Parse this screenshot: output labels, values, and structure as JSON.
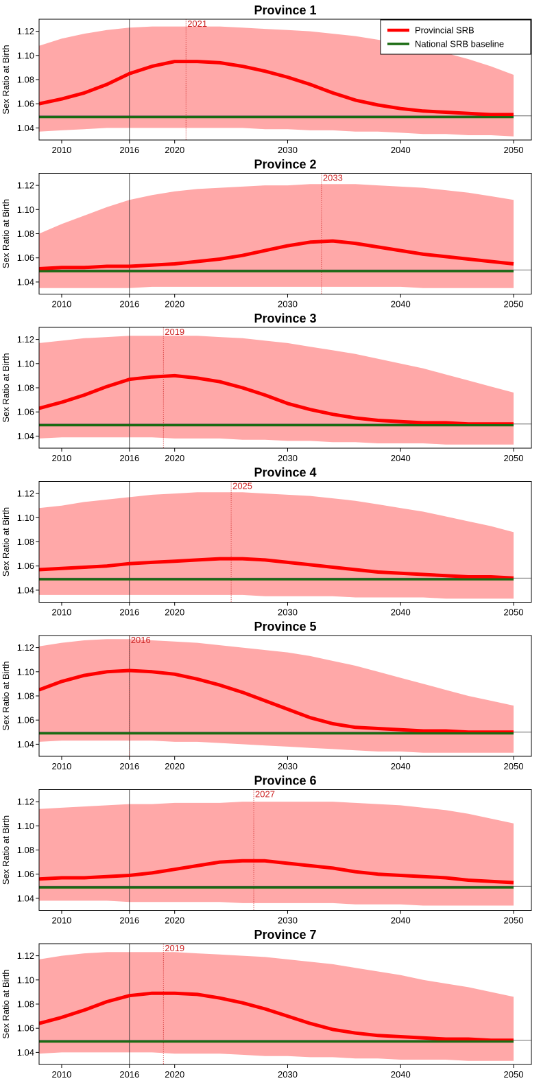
{
  "colors": {
    "band": "#ffa8a8",
    "provincial": "#ff0000",
    "national": "#1a6b12",
    "peak": "#cc2222",
    "axis": "#000000"
  },
  "legend": {
    "placement": "top-right",
    "items": [
      {
        "label": "Provincial SRB",
        "color": "#ff0000"
      },
      {
        "label": "National SRB baseline",
        "color": "#1a6b12"
      }
    ]
  },
  "chart_data": [
    {
      "type": "area",
      "title": "Province 1",
      "ylabel": "Sex Ratio at Birth",
      "xlabel": "",
      "xlim": [
        2008,
        2050
      ],
      "ylim": [
        1.03,
        1.13
      ],
      "x_ticks": [
        2010,
        2016,
        2020,
        2030,
        2040,
        2050
      ],
      "y_ticks": [
        "1.04",
        "1.06",
        "1.08",
        "1.10",
        "1.12"
      ],
      "reference_year": 2016,
      "baseline": 1.05,
      "peak_year": 2021,
      "peak_label": "2021",
      "x": [
        2008,
        2010,
        2012,
        2014,
        2016,
        2018,
        2020,
        2022,
        2024,
        2026,
        2028,
        2030,
        2032,
        2034,
        2036,
        2038,
        2040,
        2042,
        2044,
        2046,
        2048,
        2050
      ],
      "series": [
        {
          "name": "Provincial SRB",
          "values": [
            1.06,
            1.064,
            1.069,
            1.076,
            1.085,
            1.091,
            1.095,
            1.095,
            1.094,
            1.091,
            1.087,
            1.082,
            1.076,
            1.069,
            1.063,
            1.059,
            1.056,
            1.054,
            1.053,
            1.052,
            1.051,
            1.051
          ]
        },
        {
          "name": "National SRB baseline",
          "values": [
            1.049,
            1.049,
            1.049,
            1.049,
            1.049,
            1.049,
            1.049,
            1.049,
            1.049,
            1.049,
            1.049,
            1.049,
            1.049,
            1.049,
            1.049,
            1.049,
            1.049,
            1.049,
            1.049,
            1.049,
            1.049,
            1.049
          ]
        }
      ],
      "band": {
        "upper": [
          1.108,
          1.114,
          1.118,
          1.121,
          1.123,
          1.124,
          1.124,
          1.124,
          1.124,
          1.123,
          1.122,
          1.121,
          1.12,
          1.118,
          1.116,
          1.113,
          1.11,
          1.106,
          1.102,
          1.097,
          1.091,
          1.084
        ],
        "lower": [
          1.037,
          1.038,
          1.039,
          1.04,
          1.04,
          1.04,
          1.04,
          1.04,
          1.04,
          1.04,
          1.039,
          1.039,
          1.038,
          1.038,
          1.037,
          1.037,
          1.036,
          1.035,
          1.035,
          1.034,
          1.034,
          1.033
        ]
      }
    },
    {
      "type": "area",
      "title": "Province 2",
      "ylabel": "Sex Ratio at Birth",
      "xlabel": "",
      "xlim": [
        2008,
        2050
      ],
      "ylim": [
        1.03,
        1.13
      ],
      "x_ticks": [
        2010,
        2016,
        2020,
        2030,
        2040,
        2050
      ],
      "y_ticks": [
        "1.04",
        "1.06",
        "1.08",
        "1.10",
        "1.12"
      ],
      "reference_year": 2016,
      "baseline": 1.05,
      "peak_year": 2033,
      "peak_label": "2033",
      "x": [
        2008,
        2010,
        2012,
        2014,
        2016,
        2018,
        2020,
        2022,
        2024,
        2026,
        2028,
        2030,
        2032,
        2034,
        2036,
        2038,
        2040,
        2042,
        2044,
        2046,
        2048,
        2050
      ],
      "series": [
        {
          "name": "Provincial SRB",
          "values": [
            1.051,
            1.052,
            1.052,
            1.053,
            1.053,
            1.054,
            1.055,
            1.057,
            1.059,
            1.062,
            1.066,
            1.07,
            1.073,
            1.074,
            1.072,
            1.069,
            1.066,
            1.063,
            1.061,
            1.059,
            1.057,
            1.055
          ]
        },
        {
          "name": "National SRB baseline",
          "values": [
            1.049,
            1.049,
            1.049,
            1.049,
            1.049,
            1.049,
            1.049,
            1.049,
            1.049,
            1.049,
            1.049,
            1.049,
            1.049,
            1.049,
            1.049,
            1.049,
            1.049,
            1.049,
            1.049,
            1.049,
            1.049,
            1.049
          ]
        }
      ],
      "band": {
        "upper": [
          1.08,
          1.088,
          1.095,
          1.102,
          1.108,
          1.112,
          1.115,
          1.117,
          1.118,
          1.119,
          1.12,
          1.12,
          1.121,
          1.121,
          1.121,
          1.12,
          1.119,
          1.118,
          1.116,
          1.114,
          1.111,
          1.108
        ],
        "lower": [
          1.035,
          1.035,
          1.035,
          1.035,
          1.035,
          1.036,
          1.036,
          1.036,
          1.036,
          1.036,
          1.036,
          1.036,
          1.036,
          1.036,
          1.036,
          1.036,
          1.036,
          1.035,
          1.035,
          1.035,
          1.035,
          1.035
        ]
      }
    },
    {
      "type": "area",
      "title": "Province 3",
      "ylabel": "Sex Ratio at Birth",
      "xlabel": "",
      "xlim": [
        2008,
        2050
      ],
      "ylim": [
        1.03,
        1.13
      ],
      "x_ticks": [
        2010,
        2016,
        2020,
        2030,
        2040,
        2050
      ],
      "y_ticks": [
        "1.04",
        "1.06",
        "1.08",
        "1.10",
        "1.12"
      ],
      "reference_year": 2016,
      "baseline": 1.05,
      "peak_year": 2019,
      "peak_label": "2019",
      "x": [
        2008,
        2010,
        2012,
        2014,
        2016,
        2018,
        2020,
        2022,
        2024,
        2026,
        2028,
        2030,
        2032,
        2034,
        2036,
        2038,
        2040,
        2042,
        2044,
        2046,
        2048,
        2050
      ],
      "series": [
        {
          "name": "Provincial SRB",
          "values": [
            1.063,
            1.068,
            1.074,
            1.081,
            1.087,
            1.089,
            1.09,
            1.088,
            1.085,
            1.08,
            1.074,
            1.067,
            1.062,
            1.058,
            1.055,
            1.053,
            1.052,
            1.051,
            1.051,
            1.05,
            1.05,
            1.05
          ]
        },
        {
          "name": "National SRB baseline",
          "values": [
            1.049,
            1.049,
            1.049,
            1.049,
            1.049,
            1.049,
            1.049,
            1.049,
            1.049,
            1.049,
            1.049,
            1.049,
            1.049,
            1.049,
            1.049,
            1.049,
            1.049,
            1.049,
            1.049,
            1.049,
            1.049,
            1.049
          ]
        }
      ],
      "band": {
        "upper": [
          1.117,
          1.119,
          1.121,
          1.122,
          1.123,
          1.123,
          1.123,
          1.123,
          1.122,
          1.121,
          1.119,
          1.117,
          1.114,
          1.111,
          1.108,
          1.104,
          1.1,
          1.096,
          1.091,
          1.086,
          1.081,
          1.076
        ],
        "lower": [
          1.038,
          1.039,
          1.039,
          1.039,
          1.039,
          1.039,
          1.038,
          1.038,
          1.038,
          1.037,
          1.037,
          1.036,
          1.036,
          1.035,
          1.035,
          1.034,
          1.034,
          1.034,
          1.033,
          1.033,
          1.033,
          1.033
        ]
      }
    },
    {
      "type": "area",
      "title": "Province 4",
      "ylabel": "Sex Ratio at Birth",
      "xlabel": "",
      "xlim": [
        2008,
        2050
      ],
      "ylim": [
        1.03,
        1.13
      ],
      "x_ticks": [
        2010,
        2016,
        2020,
        2030,
        2040,
        2050
      ],
      "y_ticks": [
        "1.04",
        "1.06",
        "1.08",
        "1.10",
        "1.12"
      ],
      "reference_year": 2016,
      "baseline": 1.05,
      "peak_year": 2025,
      "peak_label": "2025",
      "x": [
        2008,
        2010,
        2012,
        2014,
        2016,
        2018,
        2020,
        2022,
        2024,
        2026,
        2028,
        2030,
        2032,
        2034,
        2036,
        2038,
        2040,
        2042,
        2044,
        2046,
        2048,
        2050
      ],
      "series": [
        {
          "name": "Provincial SRB",
          "values": [
            1.057,
            1.058,
            1.059,
            1.06,
            1.062,
            1.063,
            1.064,
            1.065,
            1.066,
            1.066,
            1.065,
            1.063,
            1.061,
            1.059,
            1.057,
            1.055,
            1.054,
            1.053,
            1.052,
            1.051,
            1.051,
            1.05
          ]
        },
        {
          "name": "National SRB baseline",
          "values": [
            1.049,
            1.049,
            1.049,
            1.049,
            1.049,
            1.049,
            1.049,
            1.049,
            1.049,
            1.049,
            1.049,
            1.049,
            1.049,
            1.049,
            1.049,
            1.049,
            1.049,
            1.049,
            1.049,
            1.049,
            1.049,
            1.049
          ]
        }
      ],
      "band": {
        "upper": [
          1.108,
          1.11,
          1.113,
          1.115,
          1.117,
          1.119,
          1.12,
          1.121,
          1.121,
          1.121,
          1.12,
          1.119,
          1.118,
          1.116,
          1.114,
          1.111,
          1.108,
          1.105,
          1.101,
          1.097,
          1.093,
          1.088
        ],
        "lower": [
          1.036,
          1.036,
          1.036,
          1.036,
          1.036,
          1.036,
          1.036,
          1.036,
          1.036,
          1.036,
          1.035,
          1.035,
          1.035,
          1.035,
          1.034,
          1.034,
          1.034,
          1.034,
          1.033,
          1.033,
          1.033,
          1.033
        ]
      }
    },
    {
      "type": "area",
      "title": "Province 5",
      "ylabel": "Sex Ratio at Birth",
      "xlabel": "",
      "xlim": [
        2008,
        2050
      ],
      "ylim": [
        1.03,
        1.13
      ],
      "x_ticks": [
        2010,
        2016,
        2020,
        2030,
        2040,
        2050
      ],
      "y_ticks": [
        "1.04",
        "1.06",
        "1.08",
        "1.10",
        "1.12"
      ],
      "reference_year": 2016,
      "baseline": 1.05,
      "peak_year": 2016,
      "peak_label": "2016",
      "x": [
        2008,
        2010,
        2012,
        2014,
        2016,
        2018,
        2020,
        2022,
        2024,
        2026,
        2028,
        2030,
        2032,
        2034,
        2036,
        2038,
        2040,
        2042,
        2044,
        2046,
        2048,
        2050
      ],
      "series": [
        {
          "name": "Provincial SRB",
          "values": [
            1.085,
            1.092,
            1.097,
            1.1,
            1.101,
            1.1,
            1.098,
            1.094,
            1.089,
            1.083,
            1.076,
            1.069,
            1.062,
            1.057,
            1.054,
            1.053,
            1.052,
            1.051,
            1.051,
            1.05,
            1.05,
            1.05
          ]
        },
        {
          "name": "National SRB baseline",
          "values": [
            1.049,
            1.049,
            1.049,
            1.049,
            1.049,
            1.049,
            1.049,
            1.049,
            1.049,
            1.049,
            1.049,
            1.049,
            1.049,
            1.049,
            1.049,
            1.049,
            1.049,
            1.049,
            1.049,
            1.049,
            1.049,
            1.049
          ]
        }
      ],
      "band": {
        "upper": [
          1.121,
          1.124,
          1.126,
          1.127,
          1.127,
          1.126,
          1.125,
          1.124,
          1.122,
          1.12,
          1.118,
          1.116,
          1.113,
          1.109,
          1.105,
          1.1,
          1.095,
          1.09,
          1.085,
          1.08,
          1.076,
          1.072
        ],
        "lower": [
          1.042,
          1.043,
          1.043,
          1.043,
          1.043,
          1.043,
          1.042,
          1.042,
          1.041,
          1.04,
          1.039,
          1.038,
          1.037,
          1.036,
          1.035,
          1.034,
          1.034,
          1.033,
          1.033,
          1.033,
          1.033,
          1.033
        ]
      }
    },
    {
      "type": "area",
      "title": "Province 6",
      "ylabel": "Sex Ratio at Birth",
      "xlabel": "",
      "xlim": [
        2008,
        2050
      ],
      "ylim": [
        1.03,
        1.13
      ],
      "x_ticks": [
        2010,
        2016,
        2020,
        2030,
        2040,
        2050
      ],
      "y_ticks": [
        "1.04",
        "1.06",
        "1.08",
        "1.10",
        "1.12"
      ],
      "reference_year": 2016,
      "baseline": 1.05,
      "peak_year": 2027,
      "peak_label": "2027",
      "x": [
        2008,
        2010,
        2012,
        2014,
        2016,
        2018,
        2020,
        2022,
        2024,
        2026,
        2028,
        2030,
        2032,
        2034,
        2036,
        2038,
        2040,
        2042,
        2044,
        2046,
        2048,
        2050
      ],
      "series": [
        {
          "name": "Provincial SRB",
          "values": [
            1.056,
            1.057,
            1.057,
            1.058,
            1.059,
            1.061,
            1.064,
            1.067,
            1.07,
            1.071,
            1.071,
            1.069,
            1.067,
            1.065,
            1.062,
            1.06,
            1.059,
            1.058,
            1.057,
            1.055,
            1.054,
            1.053
          ]
        },
        {
          "name": "National SRB baseline",
          "values": [
            1.049,
            1.049,
            1.049,
            1.049,
            1.049,
            1.049,
            1.049,
            1.049,
            1.049,
            1.049,
            1.049,
            1.049,
            1.049,
            1.049,
            1.049,
            1.049,
            1.049,
            1.049,
            1.049,
            1.049,
            1.049,
            1.049
          ]
        }
      ],
      "band": {
        "upper": [
          1.114,
          1.115,
          1.116,
          1.117,
          1.118,
          1.118,
          1.119,
          1.119,
          1.119,
          1.12,
          1.12,
          1.12,
          1.12,
          1.12,
          1.119,
          1.118,
          1.117,
          1.115,
          1.113,
          1.11,
          1.106,
          1.102
        ],
        "lower": [
          1.038,
          1.038,
          1.038,
          1.038,
          1.037,
          1.037,
          1.037,
          1.037,
          1.037,
          1.036,
          1.036,
          1.036,
          1.036,
          1.036,
          1.035,
          1.035,
          1.035,
          1.034,
          1.034,
          1.034,
          1.034,
          1.034
        ]
      }
    },
    {
      "type": "area",
      "title": "Province 7",
      "ylabel": "Sex Ratio at Birth",
      "xlabel": "",
      "xlim": [
        2008,
        2050
      ],
      "ylim": [
        1.03,
        1.13
      ],
      "x_ticks": [
        2010,
        2016,
        2020,
        2030,
        2040,
        2050
      ],
      "y_ticks": [
        "1.04",
        "1.06",
        "1.08",
        "1.10",
        "1.12"
      ],
      "reference_year": 2016,
      "baseline": 1.05,
      "peak_year": 2019,
      "peak_label": "2019",
      "x": [
        2008,
        2010,
        2012,
        2014,
        2016,
        2018,
        2020,
        2022,
        2024,
        2026,
        2028,
        2030,
        2032,
        2034,
        2036,
        2038,
        2040,
        2042,
        2044,
        2046,
        2048,
        2050
      ],
      "series": [
        {
          "name": "Provincial SRB",
          "values": [
            1.064,
            1.069,
            1.075,
            1.082,
            1.087,
            1.089,
            1.089,
            1.088,
            1.085,
            1.081,
            1.076,
            1.07,
            1.064,
            1.059,
            1.056,
            1.054,
            1.053,
            1.052,
            1.051,
            1.051,
            1.05,
            1.05
          ]
        },
        {
          "name": "National SRB baseline",
          "values": [
            1.049,
            1.049,
            1.049,
            1.049,
            1.049,
            1.049,
            1.049,
            1.049,
            1.049,
            1.049,
            1.049,
            1.049,
            1.049,
            1.049,
            1.049,
            1.049,
            1.049,
            1.049,
            1.049,
            1.049,
            1.049,
            1.049
          ]
        }
      ],
      "band": {
        "upper": [
          1.117,
          1.12,
          1.122,
          1.123,
          1.123,
          1.123,
          1.123,
          1.122,
          1.121,
          1.12,
          1.119,
          1.117,
          1.115,
          1.113,
          1.11,
          1.107,
          1.104,
          1.1,
          1.097,
          1.094,
          1.09,
          1.086
        ],
        "lower": [
          1.039,
          1.04,
          1.04,
          1.04,
          1.04,
          1.04,
          1.039,
          1.039,
          1.039,
          1.038,
          1.037,
          1.037,
          1.036,
          1.036,
          1.035,
          1.035,
          1.034,
          1.034,
          1.034,
          1.033,
          1.033,
          1.033
        ]
      }
    }
  ]
}
